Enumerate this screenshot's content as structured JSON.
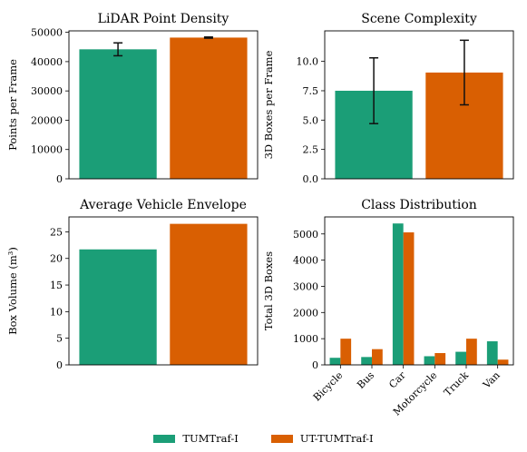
{
  "colors": {
    "tum": "#1b9e77",
    "ut": "#d95f02"
  },
  "legend": [
    {
      "name": "TUMTraf-I",
      "color": "#1b9e77"
    },
    {
      "name": "UT-TUMTraf-I",
      "color": "#d95f02"
    }
  ],
  "chart_data": [
    {
      "type": "bar",
      "title": "LiDAR Point Density",
      "ylabel": "Points per Frame",
      "categories": [
        "TUMTraf-I",
        "UT-TUMTraf-I"
      ],
      "values": [
        44200,
        48200
      ],
      "errors": [
        2200,
        200
      ],
      "ylim": [
        0,
        50500
      ],
      "yticks": [
        0,
        10000,
        20000,
        30000,
        40000,
        50000
      ]
    },
    {
      "type": "bar",
      "title": "Scene Complexity",
      "ylabel": "3D Boxes per Frame",
      "categories": [
        "TUMTraf-I",
        "UT-TUMTraf-I"
      ],
      "values": [
        7.5,
        9.05
      ],
      "errors": [
        2.8,
        2.75
      ],
      "ylim": [
        0,
        12.6
      ],
      "yticks": [
        "0.0",
        "2.5",
        "5.0",
        "7.5",
        "10.0"
      ]
    },
    {
      "type": "bar",
      "title": "Average Vehicle Envelope",
      "ylabel": "Box Volume (m³)",
      "categories": [
        "TUMTraf-I",
        "UT-TUMTraf-I"
      ],
      "values": [
        21.7,
        26.5
      ],
      "ylim": [
        0,
        27.8
      ],
      "yticks": [
        0,
        5,
        10,
        15,
        20,
        25
      ]
    },
    {
      "type": "bar",
      "title": "Class Distribution",
      "ylabel": "Total 3D Boxes",
      "categories": [
        "Bicycle",
        "Bus",
        "Car",
        "Motorcycle",
        "Truck",
        "Van"
      ],
      "series": [
        {
          "name": "TUMTraf-I",
          "values": [
            270,
            300,
            5400,
            330,
            500,
            900
          ]
        },
        {
          "name": "UT-TUMTraf-I",
          "values": [
            1000,
            600,
            5060,
            450,
            1000,
            200
          ]
        }
      ],
      "ylim": [
        0,
        5650
      ],
      "yticks": [
        0,
        1000,
        2000,
        3000,
        4000,
        5000
      ]
    }
  ]
}
